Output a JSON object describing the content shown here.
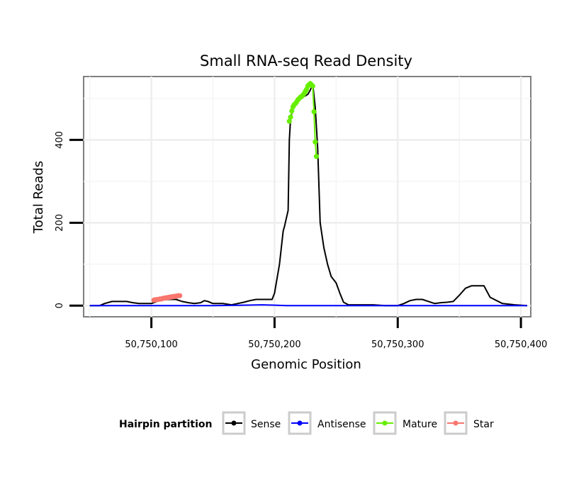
{
  "chart_data": {
    "type": "line",
    "title": "Small RNA-seq Read Density",
    "xlabel": "Genomic Position",
    "ylabel": "Total Reads",
    "xlim": [
      50750045,
      50750408
    ],
    "ylim": [
      -27,
      553
    ],
    "x_ticks": [
      {
        "value": 50750100,
        "label": "50,750,100"
      },
      {
        "value": 50750200,
        "label": "50,750,200"
      },
      {
        "value": 50750300,
        "label": "50,750,300"
      },
      {
        "value": 50750400,
        "label": "50,750,400"
      }
    ],
    "y_ticks": [
      {
        "value": 0,
        "label": "0"
      },
      {
        "value": 200,
        "label": "200"
      },
      {
        "value": 400,
        "label": "400"
      }
    ],
    "grid": true,
    "legend": {
      "title": "Hairpin partition",
      "position": "bottom",
      "entries": [
        {
          "name": "Sense",
          "color": "#000000"
        },
        {
          "name": "Antisense",
          "color": "#0000ff"
        },
        {
          "name": "Mature",
          "color": "#66ee00"
        },
        {
          "name": "Star",
          "color": "#f8766d"
        }
      ]
    },
    "series": [
      {
        "name": "Sense",
        "color": "#000000",
        "style": "line",
        "x": [
          50750050,
          50750058,
          50750062,
          50750068,
          50750080,
          50750085,
          50750090,
          50750100,
          50750102,
          50750106,
          50750110,
          50750115,
          50750120,
          50750125,
          50750130,
          50750135,
          50750140,
          50750143,
          50750146,
          50750150,
          50750158,
          50750165,
          50750170,
          50750175,
          50750180,
          50750185,
          50750190,
          50750198,
          50750200,
          50750204,
          50750207,
          50750208,
          50750211,
          50750212,
          50750213,
          50750215,
          50750218,
          50750221,
          50750224,
          50750227,
          50750229,
          50750231,
          50750233,
          50750235,
          50750237,
          50750240,
          50750243,
          50750246,
          50750250,
          50750253,
          50750256,
          50750260,
          50750270,
          50750280,
          50750290,
          50750300,
          50750305,
          50750310,
          50750315,
          50750320,
          50750325,
          50750330,
          50750335,
          50750340,
          50750345,
          50750350,
          50750355,
          50750360,
          50750365,
          50750370,
          50750375,
          50750385,
          50750395,
          50750405
        ],
        "y": [
          0,
          0,
          5,
          10,
          10,
          7,
          5,
          5,
          7,
          12,
          14,
          15,
          15,
          10,
          7,
          5,
          7,
          12,
          10,
          5,
          5,
          2,
          5,
          8,
          12,
          15,
          15,
          15,
          30,
          100,
          180,
          190,
          230,
          400,
          450,
          480,
          490,
          500,
          505,
          510,
          520,
          535,
          480,
          380,
          200,
          140,
          100,
          70,
          55,
          30,
          8,
          2,
          2,
          2,
          0,
          0,
          5,
          12,
          15,
          15,
          10,
          5,
          7,
          8,
          10,
          25,
          42,
          48,
          48,
          48,
          20,
          5,
          2,
          0
        ]
      },
      {
        "name": "Antisense",
        "color": "#0000ff",
        "style": "line",
        "x": [
          50750050,
          50750100,
          50750150,
          50750175,
          50750190,
          50750200,
          50750210,
          50750250,
          50750300,
          50750350,
          50750405
        ],
        "y": [
          0,
          0,
          0,
          1,
          2,
          1,
          0,
          0,
          0,
          0,
          0
        ]
      },
      {
        "name": "Mature",
        "color": "#66ee00",
        "style": "points",
        "x": [
          50750212,
          50750213,
          50750214,
          50750215,
          50750216,
          50750217,
          50750218,
          50750219,
          50750220,
          50750221,
          50750222,
          50750223,
          50750224,
          50750225,
          50750226,
          50750227,
          50750228,
          50750229,
          50750230,
          50750231,
          50750232,
          50750233,
          50750234
        ],
        "y": [
          445,
          455,
          470,
          480,
          485,
          488,
          492,
          497,
          500,
          503,
          505,
          508,
          512,
          517,
          522,
          530,
          533,
          536,
          533,
          530,
          468,
          395,
          360
        ]
      },
      {
        "name": "Star",
        "color": "#f8766d",
        "style": "points",
        "x": [
          50750102,
          50750103,
          50750104,
          50750105,
          50750106,
          50750107,
          50750108,
          50750109,
          50750110,
          50750111,
          50750112,
          50750113,
          50750114,
          50750115,
          50750116,
          50750117,
          50750118,
          50750119,
          50750120,
          50750121,
          50750122,
          50750123
        ],
        "y": [
          13,
          14,
          14,
          15,
          15,
          16,
          16,
          17,
          18,
          18,
          19,
          19,
          20,
          20,
          21,
          21,
          22,
          22,
          23,
          23,
          24,
          24
        ]
      }
    ]
  }
}
